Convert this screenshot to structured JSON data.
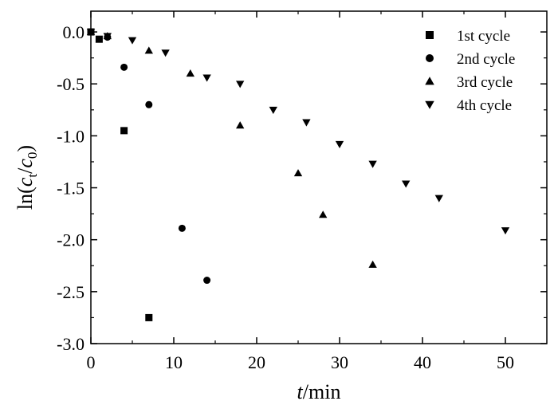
{
  "chart_data": {
    "type": "scatter",
    "title": "",
    "xlabel": {
      "italic": "t",
      "rest": "/min"
    },
    "ylabel": {
      "prefix": "ln(",
      "c1": "c",
      "sub1": "t",
      "slash": "/",
      "c2": "c",
      "sub2": "0",
      "suffix": ")"
    },
    "xlim": [
      0,
      55
    ],
    "ylim": [
      -3.0,
      0.2
    ],
    "x_ticks": [
      0,
      10,
      20,
      30,
      40,
      50
    ],
    "x_tick_labels": [
      "0",
      "10",
      "20",
      "30",
      "40",
      "50"
    ],
    "y_ticks": [
      0.0,
      -0.5,
      -1.0,
      -1.5,
      -2.0,
      -2.5,
      -3.0
    ],
    "y_tick_labels": [
      "0.0",
      "-0.5",
      "-1.0",
      "-1.5",
      "-2.0",
      "-2.5",
      "-3.0"
    ],
    "grid": false,
    "legend_position": "top-right",
    "series": [
      {
        "name": "1st cycle",
        "marker": "square",
        "points": [
          [
            0,
            0.0
          ],
          [
            1,
            -0.07
          ],
          [
            4,
            -0.95
          ],
          [
            7,
            -2.75
          ]
        ]
      },
      {
        "name": "2nd cycle",
        "marker": "circle",
        "points": [
          [
            0,
            0.0
          ],
          [
            2,
            -0.05
          ],
          [
            4,
            -0.34
          ],
          [
            7,
            -0.7
          ],
          [
            11,
            -1.89
          ],
          [
            14,
            -2.39
          ]
        ]
      },
      {
        "name": "3rd cycle",
        "marker": "triangle-up",
        "points": [
          [
            0,
            0.0
          ],
          [
            2,
            -0.04
          ],
          [
            7,
            -0.18
          ],
          [
            12,
            -0.4
          ],
          [
            18,
            -0.9
          ],
          [
            25,
            -1.36
          ],
          [
            28,
            -1.76
          ],
          [
            34,
            -2.24
          ]
        ]
      },
      {
        "name": "4th cycle",
        "marker": "triangle-down",
        "points": [
          [
            0,
            0.0
          ],
          [
            2,
            -0.04
          ],
          [
            5,
            -0.08
          ],
          [
            9,
            -0.2
          ],
          [
            14,
            -0.44
          ],
          [
            18,
            -0.5
          ],
          [
            22,
            -0.75
          ],
          [
            26,
            -0.87
          ],
          [
            30,
            -1.08
          ],
          [
            34,
            -1.27
          ],
          [
            38,
            -1.46
          ],
          [
            42,
            -1.6
          ],
          [
            50,
            -1.91
          ]
        ]
      }
    ]
  }
}
